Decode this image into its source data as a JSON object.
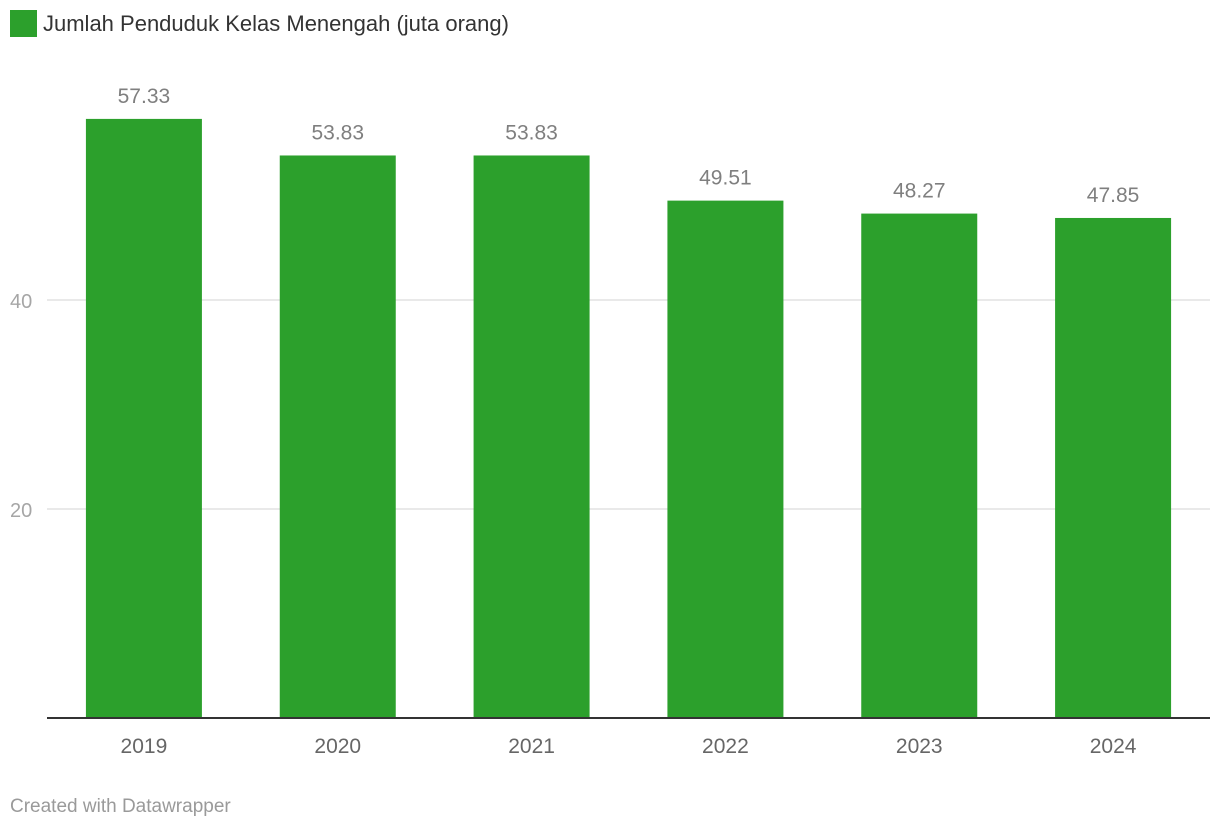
{
  "legend": {
    "label": "Jumlah Penduduk Kelas Menengah (juta orang)",
    "color": "#2ca02c"
  },
  "footer": {
    "credit": "Created with Datawrapper"
  },
  "chart_data": {
    "type": "bar",
    "categories": [
      "2019",
      "2020",
      "2021",
      "2022",
      "2023",
      "2024"
    ],
    "series": [
      {
        "name": "Jumlah Penduduk Kelas Menengah (juta orang)",
        "values": [
          57.33,
          53.83,
          53.83,
          49.51,
          48.27,
          47.85
        ],
        "labels": [
          "57.33",
          "53.83",
          "53.83",
          "49.51",
          "48.27",
          "47.85"
        ],
        "color": "#2ca02c"
      }
    ],
    "title": "",
    "xlabel": "",
    "ylabel": "",
    "ylim": [
      0,
      60
    ],
    "yticks": [
      20,
      40
    ],
    "grid": true,
    "legend_position": "top-left"
  }
}
